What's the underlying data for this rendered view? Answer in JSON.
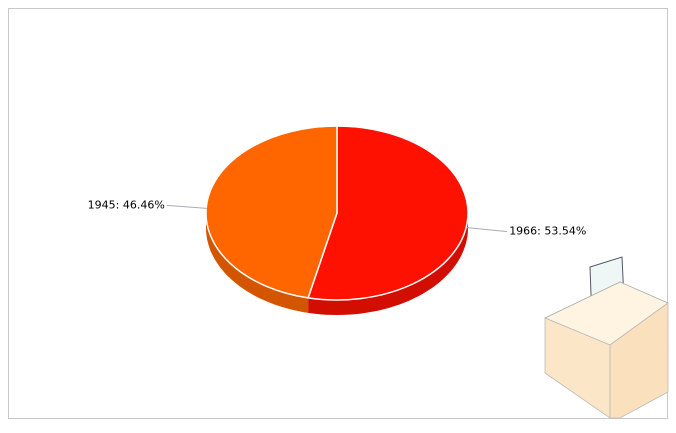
{
  "chart_data": {
    "type": "pie",
    "categories": [
      "1966",
      "1945"
    ],
    "values": [
      53.54,
      46.46
    ],
    "value_labels": [
      "1966: 53.54%",
      "1945: 46.46%"
    ],
    "colors": [
      "#ff1100",
      "#ff6600"
    ],
    "side_colors": [
      "#d10e00",
      "#d45500"
    ]
  }
}
